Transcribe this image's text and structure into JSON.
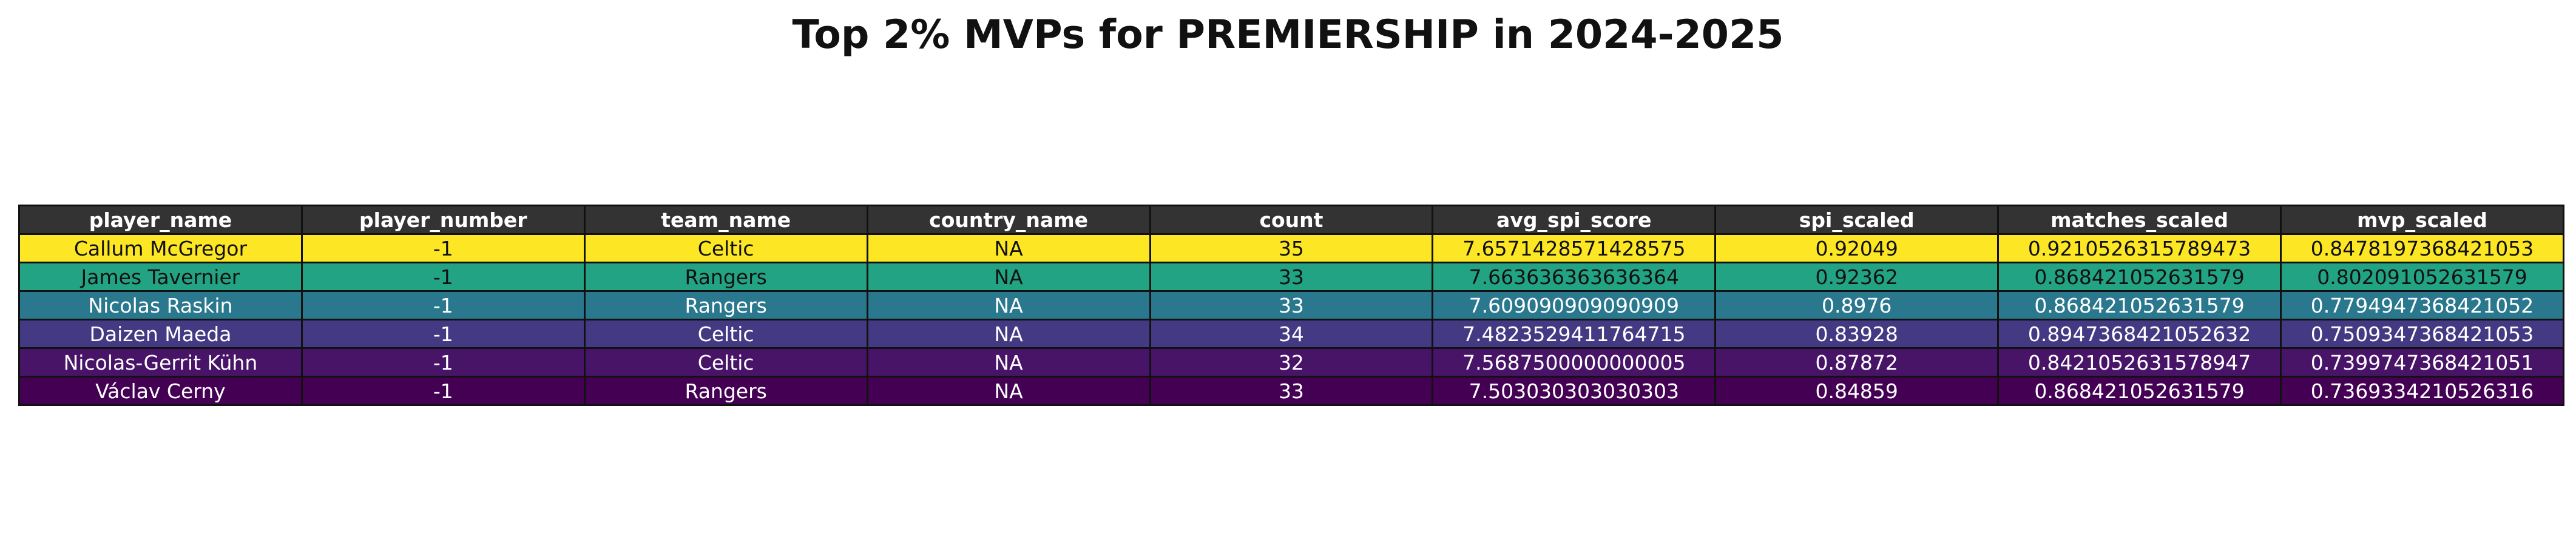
{
  "chart_data": {
    "type": "table",
    "title": "Top 2% MVPs for PREMIERSHIP in 2024-2025",
    "header_color": "#333333",
    "columns": [
      "player_name",
      "player_number",
      "team_name",
      "country_name",
      "count",
      "avg_spi_score",
      "spi_scaled",
      "matches_scaled",
      "mvp_scaled"
    ],
    "rows": [
      {
        "player_name": "Callum McGregor",
        "player_number": "-1",
        "team_name": "Celtic",
        "country_name": "NA",
        "count": "35",
        "avg_spi_score": "7.6571428571428575",
        "spi_scaled": "0.92049",
        "matches_scaled": "0.9210526315789473",
        "mvp_scaled": "0.8478197368421053",
        "bg": "#fde725",
        "fg": "#111111"
      },
      {
        "player_name": "James Tavernier",
        "player_number": "-1",
        "team_name": "Rangers",
        "country_name": "NA",
        "count": "33",
        "avg_spi_score": "7.663636363636364",
        "spi_scaled": "0.92362",
        "matches_scaled": "0.868421052631579",
        "mvp_scaled": "0.802091052631579",
        "bg": "#22a384",
        "fg": "#111111"
      },
      {
        "player_name": "Nicolas Raskin",
        "player_number": "-1",
        "team_name": "Rangers",
        "country_name": "NA",
        "count": "33",
        "avg_spi_score": "7.609090909090909",
        "spi_scaled": "0.8976",
        "matches_scaled": "0.868421052631579",
        "mvp_scaled": "0.7794947368421052",
        "bg": "#2a788e",
        "fg": "#ffffff"
      },
      {
        "player_name": "Daizen Maeda",
        "player_number": "-1",
        "team_name": "Celtic",
        "country_name": "NA",
        "count": "34",
        "avg_spi_score": "7.4823529411764715",
        "spi_scaled": "0.83928",
        "matches_scaled": "0.8947368421052632",
        "mvp_scaled": "0.7509347368421053",
        "bg": "#443a83",
        "fg": "#ffffff"
      },
      {
        "player_name": "Nicolas-Gerrit Kühn",
        "player_number": "-1",
        "team_name": "Celtic",
        "country_name": "NA",
        "count": "32",
        "avg_spi_score": "7.5687500000000005",
        "spi_scaled": "0.87872",
        "matches_scaled": "0.8421052631578947",
        "mvp_scaled": "0.7399747368421051",
        "bg": "#481467",
        "fg": "#ffffff"
      },
      {
        "player_name": "Václav Cerny",
        "player_number": "-1",
        "team_name": "Rangers",
        "country_name": "NA",
        "count": "33",
        "avg_spi_score": "7.503030303030303",
        "spi_scaled": "0.84859",
        "matches_scaled": "0.868421052631579",
        "mvp_scaled": "0.7369334210526316",
        "bg": "#440154",
        "fg": "#ffffff"
      }
    ]
  }
}
